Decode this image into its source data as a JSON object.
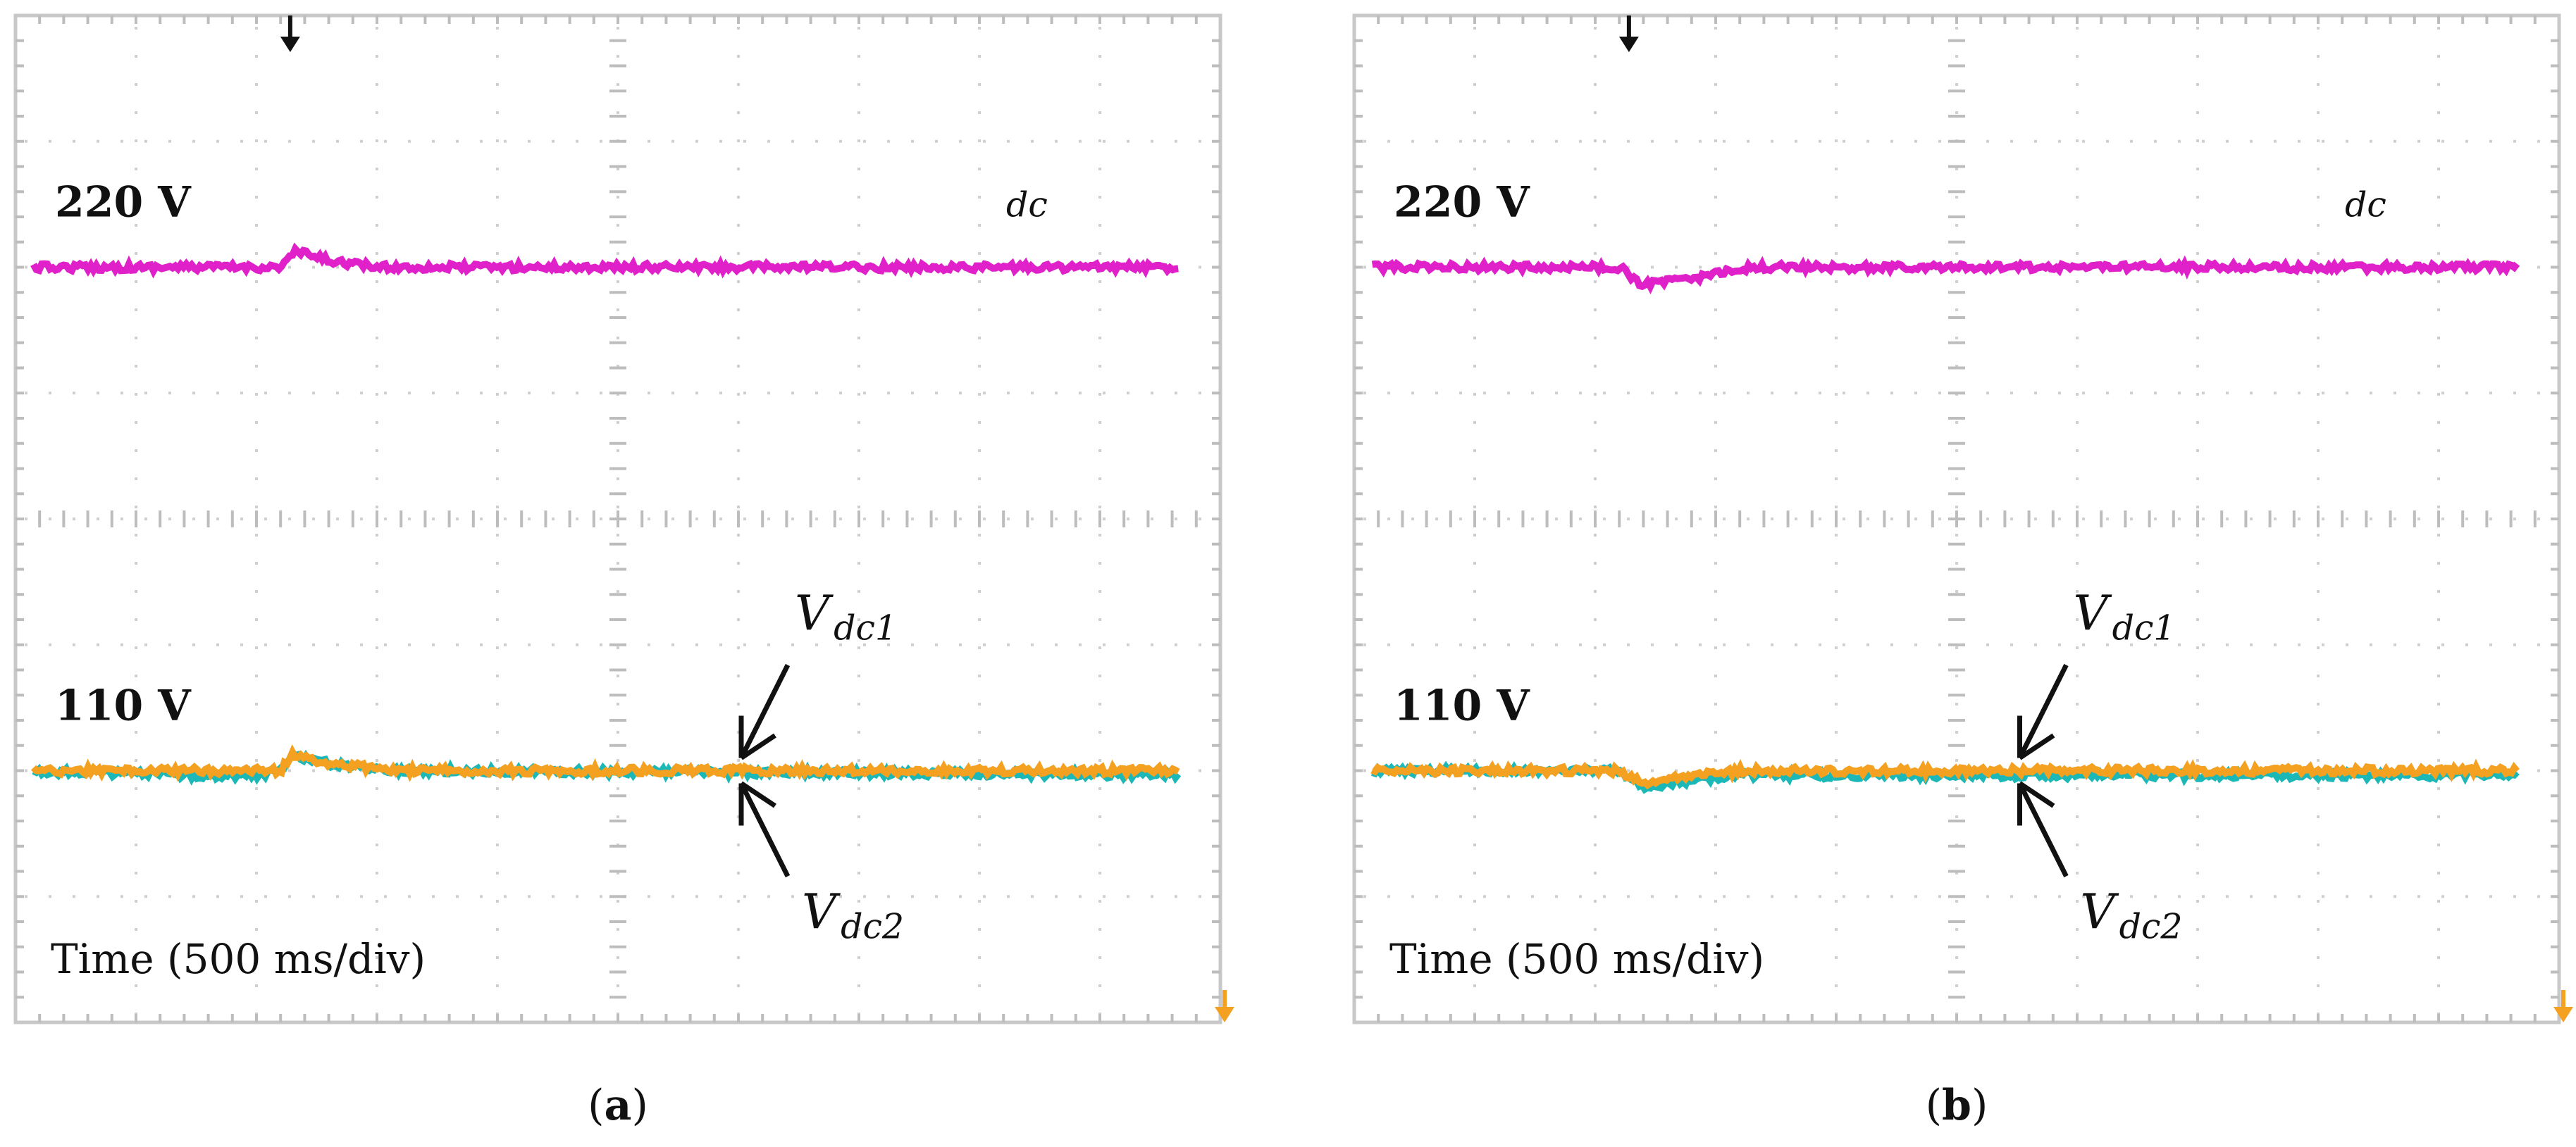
{
  "chart_data": [
    {
      "type": "line",
      "panel_label": "(a)",
      "panel_letter": "a",
      "xlabel": "Time (500 ms/div)",
      "x_divisions": 10,
      "y_divisions": 8,
      "level_labels": [
        "220 V",
        "110 V"
      ],
      "series": [
        {
          "name": "V",
          "sub": "dc",
          "color": "#e020c8",
          "t": [
            0.0,
            2.2,
            2.32,
            2.6,
            3.0,
            10.0
          ],
          "v": [
            220,
            220,
            227,
            223,
            220,
            220
          ]
        },
        {
          "name": "V",
          "sub": "dc2",
          "color": "#1cb8b8",
          "t": [
            0.0,
            1.5,
            2.0,
            2.2,
            2.3,
            2.6,
            3.2,
            10.0
          ],
          "v": [
            110,
            108,
            108,
            110,
            117,
            113,
            110,
            108
          ]
        },
        {
          "name": "V",
          "sub": "dc1",
          "color": "#f4a020",
          "t": [
            0.0,
            2.2,
            2.3,
            2.6,
            3.2,
            10.0
          ],
          "v": [
            110,
            110,
            117,
            113,
            110,
            110
          ]
        }
      ],
      "annotations": [
        {
          "label": "V",
          "sub": "dc1",
          "points_to": "dc1",
          "t": 6.0
        },
        {
          "label": "V",
          "sub": "dc2",
          "points_to": "dc2",
          "t": 6.0
        }
      ]
    },
    {
      "type": "line",
      "panel_label": "(b)",
      "panel_letter": "b",
      "xlabel": "Time (500 ms/div)",
      "x_divisions": 10,
      "y_divisions": 8,
      "level_labels": [
        "220 V",
        "110 V"
      ],
      "series": [
        {
          "name": "V",
          "sub": "dc",
          "color": "#e020c8",
          "t": [
            0.0,
            2.2,
            2.4,
            2.8,
            3.3,
            10.0
          ],
          "v": [
            220,
            220,
            212,
            215,
            220,
            220
          ]
        },
        {
          "name": "V",
          "sub": "dc2",
          "color": "#1cb8b8",
          "t": [
            0.0,
            2.2,
            2.4,
            2.7,
            3.2,
            10.0
          ],
          "v": [
            110,
            110,
            102,
            105,
            108,
            108
          ]
        },
        {
          "name": "V",
          "sub": "dc1",
          "color": "#f4a020",
          "t": [
            0.0,
            2.2,
            2.4,
            2.7,
            3.2,
            10.0
          ],
          "v": [
            110,
            110,
            104,
            107,
            110,
            110
          ]
        }
      ],
      "annotations": [
        {
          "label": "V",
          "sub": "dc1",
          "points_to": "dc1",
          "t": 5.5
        },
        {
          "label": "V",
          "sub": "dc2",
          "points_to": "dc2",
          "t": 5.5
        }
      ]
    }
  ]
}
